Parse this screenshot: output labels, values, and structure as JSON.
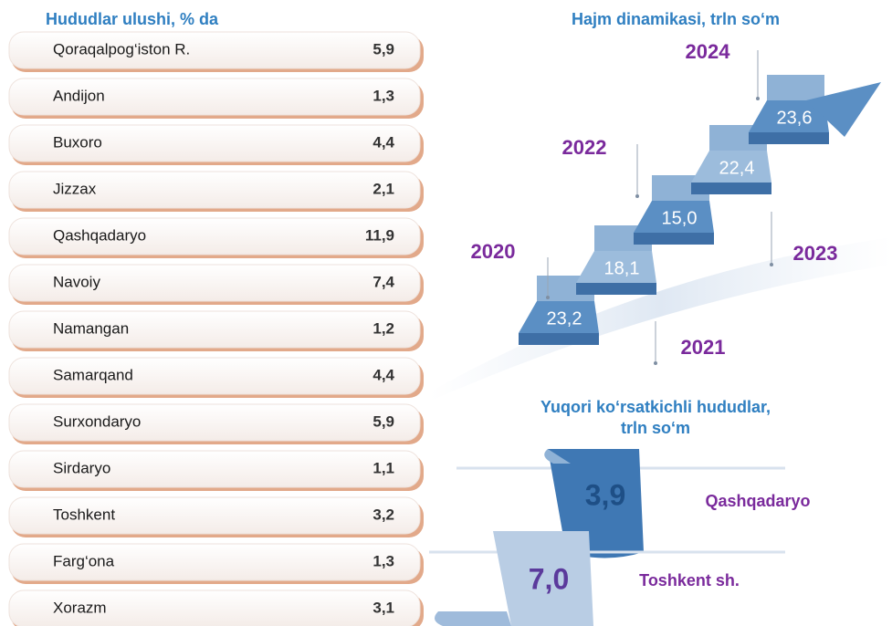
{
  "left": {
    "title": "Hududlar ulushi, % da",
    "rows": [
      {
        "name": "Qoraqalpog‘iston R.",
        "value": "5,9"
      },
      {
        "name": "Andijon",
        "value": "1,3"
      },
      {
        "name": "Buxoro",
        "value": "4,4"
      },
      {
        "name": "Jizzax",
        "value": "2,1"
      },
      {
        "name": "Qashqadaryo",
        "value": "11,9"
      },
      {
        "name": "Navoiy",
        "value": "7,4"
      },
      {
        "name": "Namangan",
        "value": "1,2"
      },
      {
        "name": "Samarqand",
        "value": "4,4"
      },
      {
        "name": "Surxondaryo",
        "value": "5,9"
      },
      {
        "name": "Sirdaryo",
        "value": "1,1"
      },
      {
        "name": "Toshkent",
        "value": "3,2"
      },
      {
        "name": "Farg‘ona",
        "value": "1,3"
      },
      {
        "name": "Xorazm",
        "value": "3,1"
      }
    ]
  },
  "right": {
    "title": "Hajm dinamikasi,  trln so‘m",
    "steps": [
      {
        "year": "2020",
        "value": "23,2"
      },
      {
        "year": "2021",
        "value": "18,1"
      },
      {
        "year": "2022",
        "value": "15,0"
      },
      {
        "year": "2023",
        "value": "22,4"
      },
      {
        "year": "2024",
        "value": "23,6"
      }
    ]
  },
  "bottom": {
    "title": [
      "Yuqori ko‘rsatkichli hududlar,",
      "trln so‘m"
    ],
    "items": [
      {
        "value": "3,9",
        "name": "Qashqadaryo"
      },
      {
        "value": "7,0",
        "name": "Toshkent sh."
      }
    ]
  }
}
